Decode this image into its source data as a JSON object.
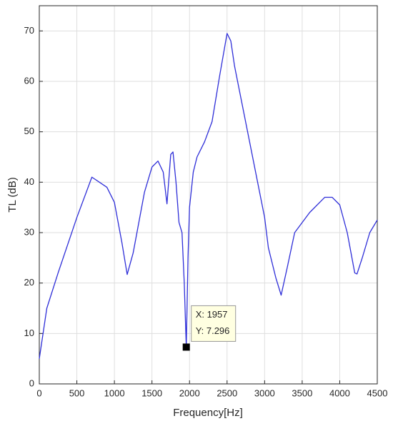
{
  "chart_data": {
    "type": "line",
    "xlabel": "Frequency[Hz]",
    "ylabel": "TL (dB)",
    "x": [
      0,
      100,
      250,
      500,
      700,
      900,
      1000,
      1100,
      1170,
      1250,
      1400,
      1500,
      1580,
      1650,
      1700,
      1750,
      1780,
      1820,
      1860,
      1880,
      1900,
      1930,
      1957,
      1980,
      2000,
      2050,
      2100,
      2200,
      2300,
      2400,
      2500,
      2550,
      2600,
      2800,
      3000,
      3050,
      3150,
      3220,
      3300,
      3400,
      3600,
      3800,
      3900,
      4000,
      4100,
      4200,
      4230,
      4300,
      4400,
      4500
    ],
    "series": [
      {
        "color": "#2e2ed8",
        "values": [
          5,
          15,
          22,
          33,
          41,
          39,
          36,
          28,
          21.7,
          26,
          38,
          43,
          44.2,
          42,
          35.7,
          45.5,
          46,
          40,
          32,
          31,
          30,
          20,
          7.296,
          25,
          35,
          42,
          45,
          48,
          52,
          61,
          69.5,
          68,
          63,
          48,
          33,
          27,
          21,
          17.6,
          23,
          30,
          34,
          37,
          37,
          35.5,
          30,
          22,
          21.8,
          25,
          30,
          32.5
        ]
      }
    ],
    "xlim": [
      0,
      4500
    ],
    "xticks": [
      0,
      500,
      1000,
      1500,
      2000,
      2500,
      3000,
      3500,
      4000,
      4500
    ],
    "ylim": [
      0,
      75
    ],
    "yticks": [
      0,
      10,
      20,
      30,
      40,
      50,
      60,
      70
    ],
    "grid": true,
    "annotation": {
      "x": 1957,
      "y": 7.296,
      "label_x": "X: 1957",
      "label_y": "Y: 7.296"
    }
  }
}
